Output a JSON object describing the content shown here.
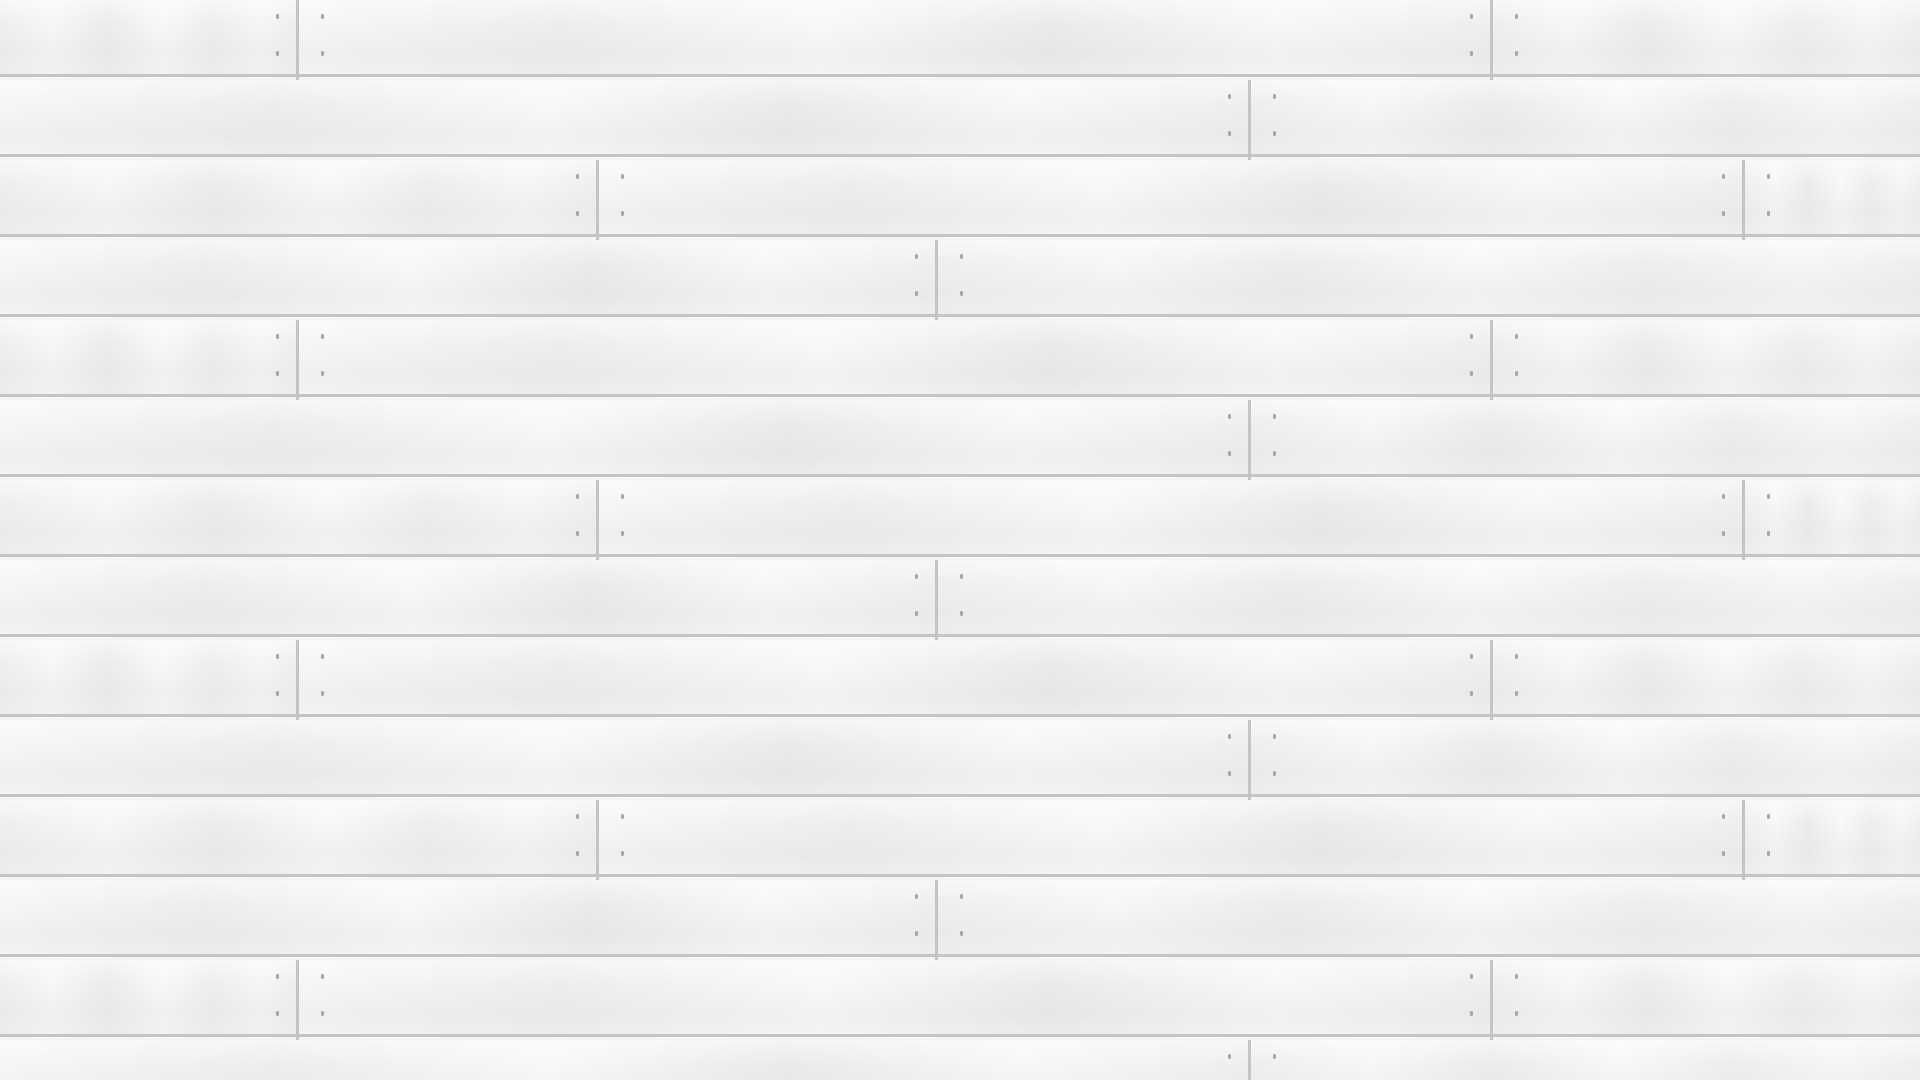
{
  "scene": {
    "description_free": true,
    "colors": {
      "plank_light": "#f7f7f7",
      "plank_mid": "#ededed",
      "seam": "#c4c4c4",
      "nail": "#a6a6a6"
    },
    "icons": [
      "nail-mark-icon"
    ]
  }
}
